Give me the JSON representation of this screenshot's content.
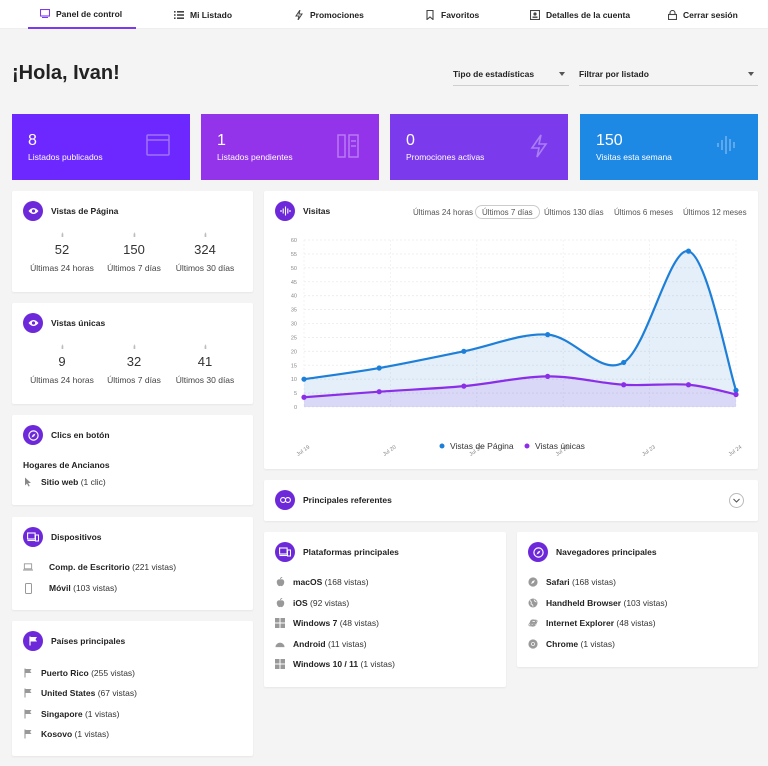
{
  "nav": {
    "dashboard": "Panel de control",
    "my_listing": "Mi Listado",
    "promotions": "Promociones",
    "favorites": "Favoritos",
    "account": "Detalles de la cuenta",
    "logout": "Cerrar sesión"
  },
  "greeting": "¡Hola, Ivan!",
  "filters": {
    "stats_type": "Tipo de estadísticas",
    "filter_listing": "Filtrar por listado"
  },
  "stats": [
    {
      "value": "8",
      "label": "Listados publicados",
      "color": "#6d28ff"
    },
    {
      "value": "1",
      "label": "Listados pendientes",
      "color": "#9333ea"
    },
    {
      "value": "0",
      "label": "Promociones activas",
      "color": "#7c3aed"
    },
    {
      "value": "150",
      "label": "Visitas esta semana",
      "color": "#1e88e5"
    }
  ],
  "page_views": {
    "title": "Vistas de Página",
    "values": [
      "52",
      "150",
      "324"
    ],
    "labels": [
      "Últimas 24 horas",
      "Últimos 7 días",
      "Últimos 30 días"
    ]
  },
  "unique_views": {
    "title": "Vistas únicas",
    "values": [
      "9",
      "32",
      "41"
    ],
    "labels": [
      "Últimas 24 horas",
      "Últimos 7 días",
      "Últimos 30 días"
    ]
  },
  "button_clicks": {
    "title": "Clics en botón",
    "listing": "Hogares de Ancianos",
    "item_name": "Sitio web",
    "item_count": "(1 clic)"
  },
  "devices": {
    "title": "Dispositivos",
    "items": [
      {
        "name": "Comp. de Escritorio",
        "count": "(221 vistas)",
        "icon": "laptop-icon"
      },
      {
        "name": "Móvil",
        "count": "(103 vistas)",
        "icon": "mobile-icon"
      }
    ]
  },
  "countries": {
    "title": "Países principales",
    "items": [
      {
        "name": "Puerto Rico",
        "count": "(255 vistas)"
      },
      {
        "name": "United States",
        "count": "(67 vistas)"
      },
      {
        "name": "Singapore",
        "count": "(1 vistas)"
      },
      {
        "name": "Kosovo",
        "count": "(1 vistas)"
      }
    ]
  },
  "visits": {
    "title": "Visitas",
    "tabs": [
      "Últimas 24 horas",
      "Últimos 7 días",
      "Últimos 130 días",
      "Últimos 6 meses",
      "Últimos 12 meses"
    ],
    "selected_tab": 1
  },
  "chart_data": {
    "type": "area",
    "x": [
      "Jul 19",
      "Jul 20",
      "Jul 21",
      "Jul 22",
      "Jul 23",
      "Jul 24"
    ],
    "yticks": [
      0,
      5,
      10,
      15,
      20,
      25,
      30,
      35,
      40,
      45,
      50,
      55,
      60
    ],
    "ylim": [
      0,
      60
    ],
    "series": [
      {
        "name": "Vistas de Página",
        "color": "#1e7fd8",
        "points": [
          [
            0,
            10
          ],
          [
            0.87,
            14
          ],
          [
            1.85,
            20
          ],
          [
            2.82,
            26
          ],
          [
            3.7,
            16
          ],
          [
            4.45,
            56
          ],
          [
            5,
            6
          ]
        ]
      },
      {
        "name": "Vistas únicas",
        "color": "#8b2ee8",
        "points": [
          [
            0,
            3.5
          ],
          [
            0.87,
            5.5
          ],
          [
            1.85,
            7.5
          ],
          [
            2.82,
            11
          ],
          [
            3.7,
            8
          ],
          [
            4.45,
            8
          ],
          [
            5,
            4.5
          ]
        ]
      }
    ],
    "legend": "bottom"
  },
  "referrers": {
    "title": "Principales referentes"
  },
  "platforms": {
    "title": "Plataformas principales",
    "items": [
      {
        "name": "macOS",
        "count": "(168 vistas)",
        "icon": "apple-icon"
      },
      {
        "name": "iOS",
        "count": "(92 vistas)",
        "icon": "apple-icon"
      },
      {
        "name": "Windows 7",
        "count": "(48 vistas)",
        "icon": "windows-icon"
      },
      {
        "name": "Android",
        "count": "(11 vistas)",
        "icon": "android-icon"
      },
      {
        "name": "Windows 10 / 11",
        "count": "(1 vistas)",
        "icon": "windows-icon"
      }
    ]
  },
  "browsers": {
    "title": "Navegadores principales",
    "items": [
      {
        "name": "Safari",
        "count": "(168 vistas)",
        "icon": "safari-icon"
      },
      {
        "name": "Handheld Browser",
        "count": "(103 vistas)",
        "icon": "globe-icon"
      },
      {
        "name": "Internet Explorer",
        "count": "(48 vistas)",
        "icon": "ie-icon"
      },
      {
        "name": "Chrome",
        "count": "(1 vistas)",
        "icon": "chrome-icon"
      }
    ]
  }
}
